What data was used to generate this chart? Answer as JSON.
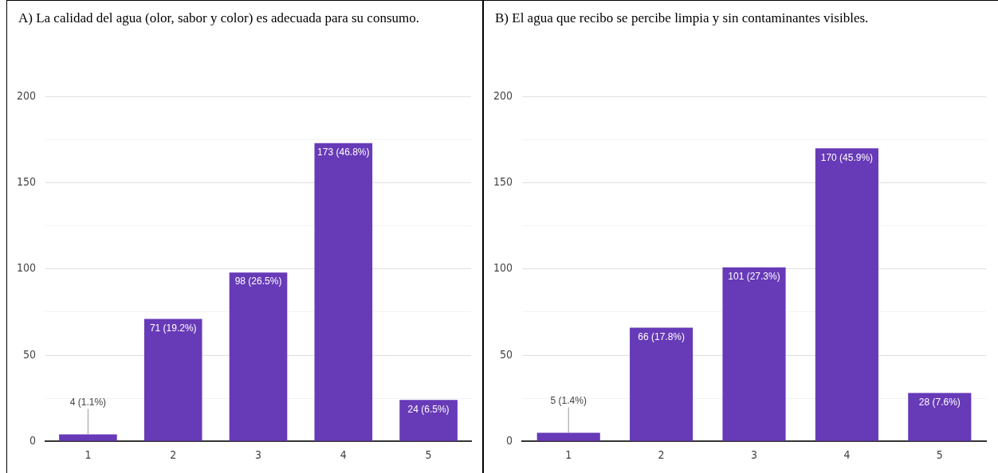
{
  "chart_data": [
    {
      "type": "bar",
      "title": "A) La calidad del agua (olor, sabor y color) es adecuada para su consumo.",
      "categories": [
        "1",
        "2",
        "3",
        "4",
        "5"
      ],
      "values": [
        4,
        71,
        98,
        173,
        24
      ],
      "value_labels": [
        "4 (1.1%)",
        "71 (19.2%)",
        "98 (26.5%)",
        "173 (46.8%)",
        "24 (6.5%)"
      ],
      "color": "#673ab7",
      "ylim": [
        0,
        200
      ],
      "yticks": [
        0,
        {
          "value": 25,
          "label": null
        },
        50,
        {
          "value": 75,
          "label": null
        },
        100,
        {
          "value": 125,
          "label": null
        },
        150,
        {
          "value": 175,
          "label": null
        },
        200
      ],
      "grid": "y",
      "legend": false
    },
    {
      "type": "bar",
      "title": "B) El agua que recibo se percibe limpia y sin contaminantes visibles.",
      "categories": [
        "1",
        "2",
        "3",
        "4",
        "5"
      ],
      "values": [
        5,
        66,
        101,
        170,
        28
      ],
      "value_labels": [
        "5 (1.4%)",
        "66 (17.8%)",
        "101 (27.3%)",
        "170 (45.9%)",
        "28 (7.6%)"
      ],
      "color": "#673ab7",
      "ylim": [
        0,
        200
      ],
      "yticks": [
        0,
        {
          "value": 25,
          "label": null
        },
        50,
        {
          "value": 75,
          "label": null
        },
        100,
        {
          "value": 125,
          "label": null
        },
        150,
        {
          "value": 175,
          "label": null
        },
        200
      ],
      "grid": "y",
      "legend": false
    }
  ]
}
